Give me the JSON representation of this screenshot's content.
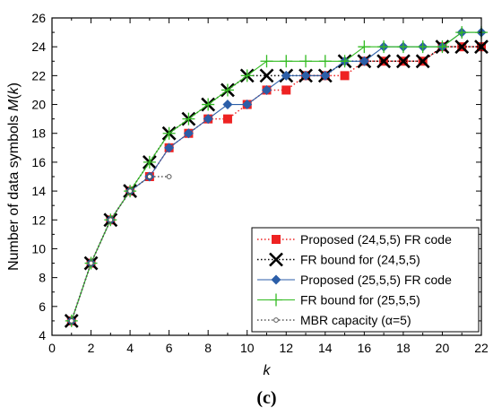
{
  "chart_data": {
    "type": "line",
    "xlabel": "k",
    "ylabel_prefix": "Number of data symbols ",
    "ylabel_math": "M",
    "ylabel_suffix_open": "(",
    "ylabel_math_arg": "k",
    "ylabel_suffix_close": ")",
    "caption": "(c)",
    "xlim": [
      0,
      22
    ],
    "ylim": [
      4,
      26
    ],
    "xticks": [
      0,
      2,
      4,
      6,
      8,
      10,
      12,
      14,
      16,
      18,
      20,
      22
    ],
    "yticks": [
      4,
      6,
      8,
      10,
      12,
      14,
      16,
      18,
      20,
      22,
      24,
      26
    ],
    "grid": false,
    "legend_position": "bottom-right",
    "series": [
      {
        "name": "Proposed (24,5,5) FR code",
        "color": "#ee2222",
        "line_style": "dotted",
        "marker": "square",
        "x": [
          1,
          2,
          3,
          4,
          5,
          6,
          7,
          8,
          9,
          10,
          11,
          12,
          13,
          14,
          15,
          16,
          17,
          18,
          19,
          20,
          21,
          22
        ],
        "y": [
          5,
          9,
          12,
          14,
          15,
          17,
          18,
          19,
          19,
          20,
          21,
          21,
          22,
          22,
          22,
          23,
          23,
          23,
          23,
          24,
          24,
          24
        ]
      },
      {
        "name": "FR bound for (24,5,5)",
        "color": "#000000",
        "line_style": "dotted",
        "marker": "x",
        "x": [
          1,
          2,
          3,
          4,
          5,
          6,
          7,
          8,
          9,
          10,
          11,
          12,
          13,
          14,
          15,
          16,
          17,
          18,
          19,
          20,
          21,
          22
        ],
        "y": [
          5,
          9,
          12,
          14,
          16,
          18,
          19,
          20,
          21,
          22,
          22,
          22,
          22,
          22,
          23,
          23,
          23,
          23,
          23,
          24,
          24,
          24
        ]
      },
      {
        "name": "Proposed (25,5,5) FR code",
        "color": "#2b5ea8",
        "line_style": "solid",
        "marker": "diamond",
        "x": [
          1,
          2,
          3,
          4,
          5,
          6,
          7,
          8,
          9,
          10,
          11,
          12,
          13,
          14,
          15,
          16,
          17,
          18,
          19,
          20,
          21,
          22
        ],
        "y": [
          5,
          9,
          12,
          14,
          15,
          17,
          18,
          19,
          20,
          20,
          21,
          22,
          22,
          22,
          23,
          23,
          24,
          24,
          24,
          24,
          25,
          25
        ]
      },
      {
        "name": "FR bound for (25,5,5)",
        "color": "#33bb22",
        "line_style": "solid",
        "marker": "plus",
        "x": [
          1,
          2,
          3,
          4,
          5,
          6,
          7,
          8,
          9,
          10,
          11,
          12,
          13,
          14,
          15,
          16,
          17,
          18,
          19,
          20,
          21,
          22
        ],
        "y": [
          5,
          9,
          12,
          14,
          16,
          18,
          19,
          20,
          21,
          22,
          23,
          23,
          23,
          23,
          23,
          24,
          24,
          24,
          24,
          24,
          25,
          25
        ]
      },
      {
        "name": "MBR capacity (α=5)",
        "color": "#555555",
        "line_style": "dotted",
        "marker": "circle",
        "x": [
          1,
          2,
          3,
          4,
          5,
          6
        ],
        "y": [
          5,
          9,
          12,
          14,
          15,
          15
        ]
      }
    ]
  }
}
